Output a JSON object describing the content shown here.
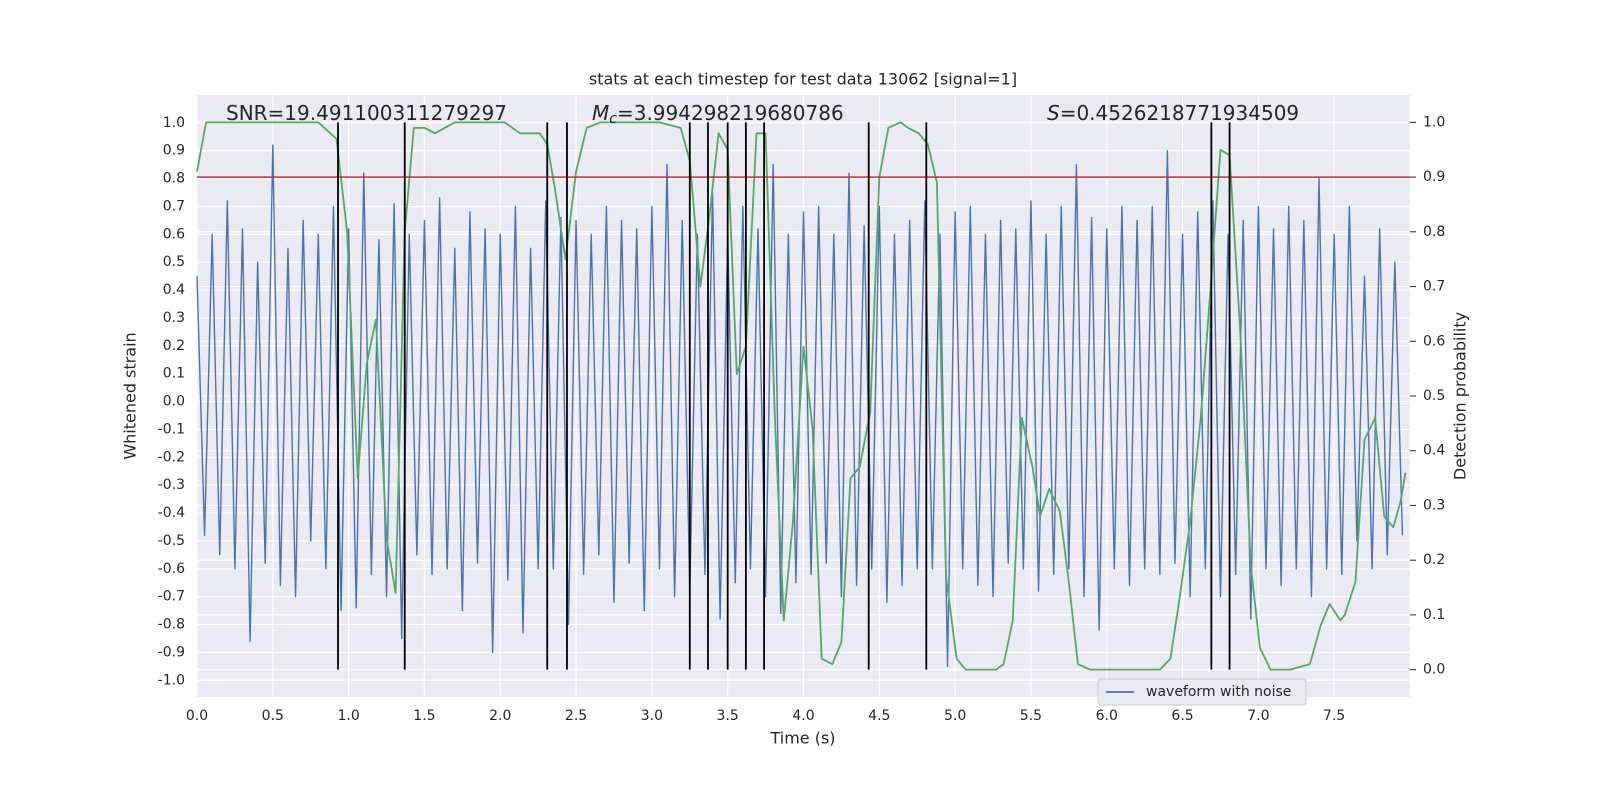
{
  "chart_data": {
    "type": "line",
    "title": "stats at each timestep for test data 13062 [signal=1]",
    "xlabel": "Time (s)",
    "ylabel": "Whitened strain",
    "y2label": "Detection probability",
    "annotations": [
      {
        "text": "SNR=19.491100311279297"
      },
      {
        "symbol": "M",
        "subscript": "c",
        "text": "=3.994298219680786"
      },
      {
        "symbol": "S",
        "text": "=0.4526218771934509"
      }
    ],
    "xlim": [
      0,
      8
    ],
    "ylim": [
      -1.06,
      1.1
    ],
    "y2lim": [
      -0.05,
      1.05
    ],
    "xticks": [
      {
        "value": 0,
        "label": "0.0"
      },
      {
        "value": 0.5,
        "label": "0.5"
      },
      {
        "value": 1,
        "label": "1.0"
      },
      {
        "value": 1.5,
        "label": "1.5"
      },
      {
        "value": 2,
        "label": "2.0"
      },
      {
        "value": 2.5,
        "label": "2.5"
      },
      {
        "value": 3,
        "label": "3.0"
      },
      {
        "value": 3.5,
        "label": "3.5"
      },
      {
        "value": 4,
        "label": "4.0"
      },
      {
        "value": 4.5,
        "label": "4.5"
      },
      {
        "value": 5,
        "label": "5.0"
      },
      {
        "value": 5.5,
        "label": "5.5"
      },
      {
        "value": 6,
        "label": "6.0"
      },
      {
        "value": 6.5,
        "label": "6.5"
      },
      {
        "value": 7,
        "label": "7.0"
      },
      {
        "value": 7.5,
        "label": "7.5"
      }
    ],
    "yticks": [
      {
        "value": -1,
        "label": "-1.0"
      },
      {
        "value": -0.9,
        "label": "-0.9"
      },
      {
        "value": -0.8,
        "label": "-0.8"
      },
      {
        "value": -0.7,
        "label": "-0.7"
      },
      {
        "value": -0.6,
        "label": "-0.6"
      },
      {
        "value": -0.5,
        "label": "-0.5"
      },
      {
        "value": -0.4,
        "label": "-0.4"
      },
      {
        "value": -0.3,
        "label": "-0.3"
      },
      {
        "value": -0.2,
        "label": "-0.2"
      },
      {
        "value": -0.1,
        "label": "-0.1"
      },
      {
        "value": 0,
        "label": "0.0"
      },
      {
        "value": 0.1,
        "label": "0.1"
      },
      {
        "value": 0.2,
        "label": "0.2"
      },
      {
        "value": 0.3,
        "label": "0.3"
      },
      {
        "value": 0.4,
        "label": "0.4"
      },
      {
        "value": 0.5,
        "label": "0.5"
      },
      {
        "value": 0.6,
        "label": "0.6"
      },
      {
        "value": 0.7,
        "label": "0.7"
      },
      {
        "value": 0.8,
        "label": "0.8"
      },
      {
        "value": 0.9,
        "label": "0.9"
      },
      {
        "value": 1,
        "label": "1.0"
      }
    ],
    "y2ticks": [
      {
        "value": 0,
        "label": "0.0"
      },
      {
        "value": 0.1,
        "label": "0.1"
      },
      {
        "value": 0.2,
        "label": "0.2"
      },
      {
        "value": 0.3,
        "label": "0.3"
      },
      {
        "value": 0.4,
        "label": "0.4"
      },
      {
        "value": 0.5,
        "label": "0.5"
      },
      {
        "value": 0.6,
        "label": "0.6"
      },
      {
        "value": 0.7,
        "label": "0.7"
      },
      {
        "value": 0.8,
        "label": "0.8"
      },
      {
        "value": 0.9,
        "label": "0.9"
      },
      {
        "value": 1,
        "label": "1.0"
      }
    ],
    "grid": true,
    "legend": "lower right",
    "series": [
      {
        "name": "waveform with noise",
        "color": "#4c72b0",
        "axis": "y",
        "x": [
          0,
          0.05,
          0.1,
          0.15,
          0.2,
          0.25,
          0.3,
          0.35,
          0.4,
          0.45,
          0.5,
          0.55,
          0.6,
          0.65,
          0.7,
          0.75,
          0.8,
          0.85,
          0.9,
          0.95,
          1,
          1.05,
          1.1,
          1.15,
          1.2,
          1.25,
          1.3,
          1.35,
          1.4,
          1.45,
          1.5,
          1.55,
          1.6,
          1.65,
          1.7,
          1.75,
          1.8,
          1.85,
          1.9,
          1.95,
          2,
          2.05,
          2.1,
          2.15,
          2.2,
          2.25,
          2.3,
          2.35,
          2.4,
          2.45,
          2.5,
          2.55,
          2.6,
          2.65,
          2.7,
          2.75,
          2.8,
          2.85,
          2.9,
          2.95,
          3,
          3.05,
          3.1,
          3.15,
          3.2,
          3.25,
          3.3,
          3.35,
          3.4,
          3.45,
          3.5,
          3.55,
          3.6,
          3.65,
          3.7,
          3.75,
          3.8,
          3.85,
          3.9,
          3.95,
          4,
          4.05,
          4.1,
          4.15,
          4.2,
          4.25,
          4.3,
          4.35,
          4.4,
          4.45,
          4.5,
          4.55,
          4.6,
          4.65,
          4.7,
          4.75,
          4.8,
          4.85,
          4.9,
          4.95,
          5,
          5.05,
          5.1,
          5.15,
          5.2,
          5.25,
          5.3,
          5.35,
          5.4,
          5.45,
          5.5,
          5.55,
          5.6,
          5.65,
          5.7,
          5.75,
          5.8,
          5.85,
          5.9,
          5.95,
          6,
          6.05,
          6.1,
          6.15,
          6.2,
          6.25,
          6.3,
          6.35,
          6.4,
          6.45,
          6.5,
          6.55,
          6.6,
          6.65,
          6.7,
          6.75,
          6.8,
          6.85,
          6.9,
          6.95,
          7,
          7.05,
          7.1,
          7.15,
          7.2,
          7.25,
          7.3,
          7.35,
          7.4,
          7.45,
          7.5,
          7.55,
          7.6,
          7.65,
          7.7,
          7.75,
          7.8,
          7.85,
          7.9,
          7.95
        ],
        "values": [
          0.45,
          -0.48,
          0.6,
          -0.55,
          0.72,
          -0.6,
          0.62,
          -0.86,
          0.5,
          -0.58,
          0.92,
          -0.66,
          0.55,
          -0.7,
          0.65,
          -0.5,
          0.6,
          -0.6,
          0.7,
          -0.75,
          0.62,
          -0.74,
          0.82,
          -0.62,
          0.58,
          -0.7,
          0.71,
          -0.85,
          0.6,
          -0.55,
          0.65,
          -0.62,
          0.73,
          -0.6,
          0.55,
          -0.75,
          0.68,
          -0.58,
          0.62,
          -0.9,
          0.6,
          -0.64,
          0.7,
          -0.83,
          0.55,
          -0.6,
          0.72,
          -0.6,
          0.66,
          -0.8,
          0.65,
          -0.62,
          0.6,
          -0.55,
          0.7,
          -0.72,
          0.65,
          -0.58,
          0.62,
          -0.75,
          0.7,
          -0.6,
          0.85,
          -0.7,
          0.65,
          -0.68,
          0.6,
          -0.62,
          0.75,
          -0.78,
          0.6,
          -0.65,
          0.7,
          -0.6,
          0.62,
          -0.7,
          0.85,
          -0.76,
          0.6,
          -0.65,
          0.68,
          -0.62,
          0.7,
          -0.58,
          0.6,
          -0.7,
          0.82,
          -0.66,
          0.63,
          -0.6,
          0.7,
          -0.72,
          0.6,
          -0.66,
          0.65,
          -0.6,
          0.72,
          -0.6,
          0.6,
          -0.95,
          0.68,
          -0.6,
          0.7,
          -0.66,
          0.6,
          -0.7,
          0.65,
          -0.58,
          0.62,
          -0.6,
          0.72,
          -0.68,
          0.6,
          -0.62,
          0.7,
          -0.6,
          0.85,
          -0.7,
          0.66,
          -0.82,
          0.62,
          -0.6,
          0.7,
          -0.66,
          0.65,
          -0.6,
          0.7,
          -0.62,
          0.9,
          -0.58,
          0.6,
          -0.7,
          0.68,
          -0.6,
          0.72,
          -0.7,
          0.6,
          -0.62,
          0.65,
          -0.78,
          0.7,
          -0.6,
          0.62,
          -0.66,
          0.7,
          -0.6,
          0.65,
          -0.7,
          0.8,
          -0.6,
          0.6,
          -0.62,
          0.7,
          -0.5,
          0.45,
          -0.6,
          0.62,
          -0.55,
          0.5,
          -0.48
        ]
      },
      {
        "color": "#55a868",
        "axis": "y2",
        "x": [
          0,
          0.06,
          0.2,
          0.8,
          0.92,
          0.99,
          1.06,
          1.12,
          1.18,
          1.25,
          1.31,
          1.37,
          1.43,
          1.5,
          1.57,
          1.7,
          2.03,
          2.13,
          2.18,
          2.26,
          2.31,
          2.36,
          2.43,
          2.5,
          2.57,
          2.66,
          3.05,
          3.19,
          3.25,
          3.32,
          3.38,
          3.44,
          3.5,
          3.56,
          3.62,
          3.69,
          3.75,
          3.81,
          3.87,
          3.93,
          4,
          4.06,
          4.12,
          4.19,
          4.25,
          4.31,
          4.37,
          4.44,
          4.5,
          4.56,
          4.64,
          4.69,
          4.76,
          4.82,
          4.88,
          4.94,
          5.01,
          5.07,
          5.27,
          5.32,
          5.38,
          5.44,
          5.51,
          5.56,
          5.62,
          5.69,
          5.75,
          5.81,
          5.89,
          6.35,
          6.42,
          6.48,
          6.55,
          6.62,
          6.68,
          6.75,
          6.81,
          6.88,
          6.95,
          7.01,
          7.08,
          7.21,
          7.34,
          7.41,
          7.47,
          7.54,
          7.57,
          7.64,
          7.7,
          7.77,
          7.83,
          7.89,
          7.94,
          7.97
        ],
        "values": [
          0.91,
          1,
          1,
          1,
          0.97,
          0.8,
          0.35,
          0.56,
          0.64,
          0.24,
          0.14,
          0.8,
          0.99,
          0.99,
          0.98,
          1,
          1,
          0.98,
          0.98,
          0.98,
          0.96,
          0.88,
          0.75,
          0.91,
          0.99,
          1,
          1,
          0.99,
          0.93,
          0.7,
          0.83,
          0.98,
          0.95,
          0.54,
          0.59,
          0.98,
          0.98,
          0.47,
          0.09,
          0.27,
          0.59,
          0.44,
          0.02,
          0.01,
          0.05,
          0.35,
          0.37,
          0.47,
          0.9,
          0.99,
          1,
          0.99,
          0.98,
          0.96,
          0.89,
          0.17,
          0.02,
          0,
          0,
          0.01,
          0.09,
          0.46,
          0.37,
          0.28,
          0.33,
          0.29,
          0.16,
          0.01,
          0,
          0,
          0.02,
          0.13,
          0.27,
          0.46,
          0.68,
          0.95,
          0.94,
          0.62,
          0.19,
          0.04,
          0,
          0,
          0.01,
          0.08,
          0.12,
          0.09,
          0.1,
          0.16,
          0.42,
          0.46,
          0.28,
          0.26,
          0.31,
          0.36
        ]
      }
    ],
    "vlines": {
      "axis": "y2",
      "color": "#000000",
      "x": [
        0.93,
        1.37,
        2.31,
        2.44,
        3.25,
        3.37,
        3.5,
        3.62,
        3.74,
        4.43,
        4.81,
        6.69,
        6.81
      ],
      "ymin": 0,
      "ymax": 1
    },
    "hline": {
      "axis": "y2",
      "color": "#c03030",
      "value": 0.9
    }
  }
}
